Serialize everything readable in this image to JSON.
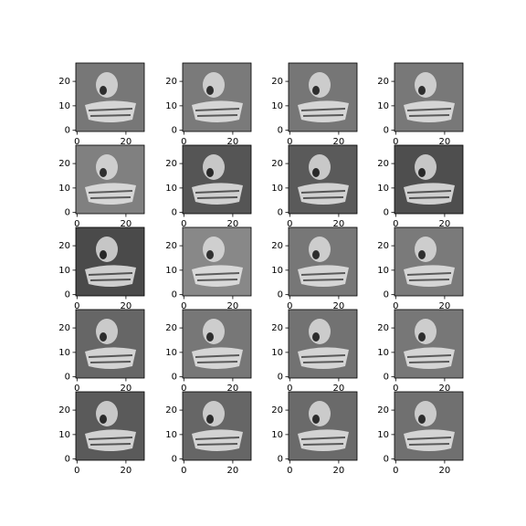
{
  "chart_data": [
    {
      "type": "image",
      "color": "#777777",
      "xlim": [
        -0.5,
        27.5
      ],
      "ylim": [
        27.5,
        -0.5
      ],
      "xticks": [
        0,
        20
      ],
      "yticks": [
        0,
        10,
        20
      ]
    },
    {
      "type": "image",
      "color": "#7a7a7a",
      "xlim": [
        -0.5,
        27.5
      ],
      "ylim": [
        27.5,
        -0.5
      ],
      "xticks": [
        0,
        20
      ],
      "yticks": [
        0,
        10,
        20
      ]
    },
    {
      "type": "image",
      "color": "#767676",
      "xlim": [
        -0.5,
        27.5
      ],
      "ylim": [
        27.5,
        -0.5
      ],
      "xticks": [
        0,
        20
      ],
      "yticks": [
        0,
        10,
        20
      ]
    },
    {
      "type": "image",
      "color": "#787878",
      "xlim": [
        -0.5,
        27.5
      ],
      "ylim": [
        27.5,
        -0.5
      ],
      "xticks": [
        0,
        20
      ],
      "yticks": [
        0,
        10,
        20
      ]
    },
    {
      "type": "image",
      "color": "#808080",
      "xlim": [
        -0.5,
        27.5
      ],
      "ylim": [
        27.5,
        -0.5
      ],
      "xticks": [
        0,
        20
      ],
      "yticks": [
        0,
        10,
        20
      ]
    },
    {
      "type": "image",
      "color": "#555555",
      "xlim": [
        -0.5,
        27.5
      ],
      "ylim": [
        27.5,
        -0.5
      ],
      "xticks": [
        0,
        20
      ],
      "yticks": [
        0,
        10,
        20
      ]
    },
    {
      "type": "image",
      "color": "#5a5a5a",
      "xlim": [
        -0.5,
        27.5
      ],
      "ylim": [
        27.5,
        -0.5
      ],
      "xticks": [
        0,
        20
      ],
      "yticks": [
        0,
        10,
        20
      ]
    },
    {
      "type": "image",
      "color": "#4e4e4e",
      "xlim": [
        -0.5,
        27.5
      ],
      "ylim": [
        27.5,
        -0.5
      ],
      "xticks": [
        0,
        20
      ],
      "yticks": [
        0,
        10,
        20
      ]
    },
    {
      "type": "image",
      "color": "#4a4a4a",
      "xlim": [
        -0.5,
        27.5
      ],
      "ylim": [
        27.5,
        -0.5
      ],
      "xticks": [
        0,
        20
      ],
      "yticks": [
        0,
        10,
        20
      ]
    },
    {
      "type": "image",
      "color": "#888888",
      "xlim": [
        -0.5,
        27.5
      ],
      "ylim": [
        27.5,
        -0.5
      ],
      "xticks": [
        0,
        20
      ],
      "yticks": [
        0,
        10,
        20
      ]
    },
    {
      "type": "image",
      "color": "#777777",
      "xlim": [
        -0.5,
        27.5
      ],
      "ylim": [
        27.5,
        -0.5
      ],
      "xticks": [
        0,
        20
      ],
      "yticks": [
        0,
        10,
        20
      ]
    },
    {
      "type": "image",
      "color": "#7a7a7a",
      "xlim": [
        -0.5,
        27.5
      ],
      "ylim": [
        27.5,
        -0.5
      ],
      "xticks": [
        0,
        20
      ],
      "yticks": [
        0,
        10,
        20
      ]
    },
    {
      "type": "image",
      "color": "#666666",
      "xlim": [
        -0.5,
        27.5
      ],
      "ylim": [
        27.5,
        -0.5
      ],
      "xticks": [
        0,
        20
      ],
      "yticks": [
        0,
        10,
        20
      ]
    },
    {
      "type": "image",
      "color": "#777777",
      "xlim": [
        -0.5,
        27.5
      ],
      "ylim": [
        27.5,
        -0.5
      ],
      "xticks": [
        0,
        20
      ],
      "yticks": [
        0,
        10,
        20
      ]
    },
    {
      "type": "image",
      "color": "#727272",
      "xlim": [
        -0.5,
        27.5
      ],
      "ylim": [
        27.5,
        -0.5
      ],
      "xticks": [
        0,
        20
      ],
      "yticks": [
        0,
        10,
        20
      ]
    },
    {
      "type": "image",
      "color": "#777777",
      "xlim": [
        -0.5,
        27.5
      ],
      "ylim": [
        27.5,
        -0.5
      ],
      "xticks": [
        0,
        20
      ],
      "yticks": [
        0,
        10,
        20
      ]
    },
    {
      "type": "image",
      "color": "#5a5a5a",
      "xlim": [
        -0.5,
        27.5
      ],
      "ylim": [
        27.5,
        -0.5
      ],
      "xticks": [
        0,
        20
      ],
      "yticks": [
        0,
        10,
        20
      ]
    },
    {
      "type": "image",
      "color": "#666666",
      "xlim": [
        -0.5,
        27.5
      ],
      "ylim": [
        27.5,
        -0.5
      ],
      "xticks": [
        0,
        20
      ],
      "yticks": [
        0,
        10,
        20
      ]
    },
    {
      "type": "image",
      "color": "#6a6a6a",
      "xlim": [
        -0.5,
        27.5
      ],
      "ylim": [
        27.5,
        -0.5
      ],
      "xticks": [
        0,
        20
      ],
      "yticks": [
        0,
        10,
        20
      ]
    },
    {
      "type": "image",
      "color": "#707070",
      "xlim": [
        -0.5,
        27.5
      ],
      "ylim": [
        27.5,
        -0.5
      ],
      "xticks": [
        0,
        20
      ],
      "yticks": [
        0,
        10,
        20
      ]
    }
  ]
}
